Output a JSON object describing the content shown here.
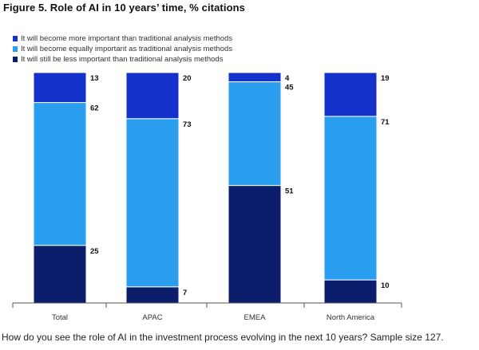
{
  "title": "Figure 5. Role of AI in 10 years’ time, % citations",
  "caption": "How do you see the role of AI in the investment process evolving in the next 10 years? Sample size 127.",
  "chart_data": {
    "type": "bar",
    "stacked": true,
    "title": "Figure 5. Role of AI in 10 years’ time, % citations",
    "categories": [
      "Total",
      "APAC",
      "EMEA",
      "North America"
    ],
    "series": [
      {
        "name": "It will still be less important than traditional analysis methods",
        "color": "#0c1d6b",
        "values": [
          25,
          7,
          51,
          10
        ]
      },
      {
        "name": "It will become equally important as traditional analysis methods",
        "color": "#2a9fef",
        "values": [
          62,
          73,
          45,
          71
        ]
      },
      {
        "name": "It will become more important than traditional analysis methods",
        "color": "#1431c9",
        "values": [
          13,
          20,
          4,
          19
        ]
      }
    ],
    "legend": [
      {
        "name": "It will become more important than traditional analysis methods",
        "color": "#1431c9"
      },
      {
        "name": "It will become equally important as traditional analysis methods",
        "color": "#2a9fef"
      },
      {
        "name": "It will still be less important than traditional analysis methods",
        "color": "#0c1d6b"
      }
    ],
    "ylim": [
      0,
      100
    ],
    "xlabel": "",
    "ylabel": "",
    "grid": false,
    "legend_position": "top-left"
  }
}
